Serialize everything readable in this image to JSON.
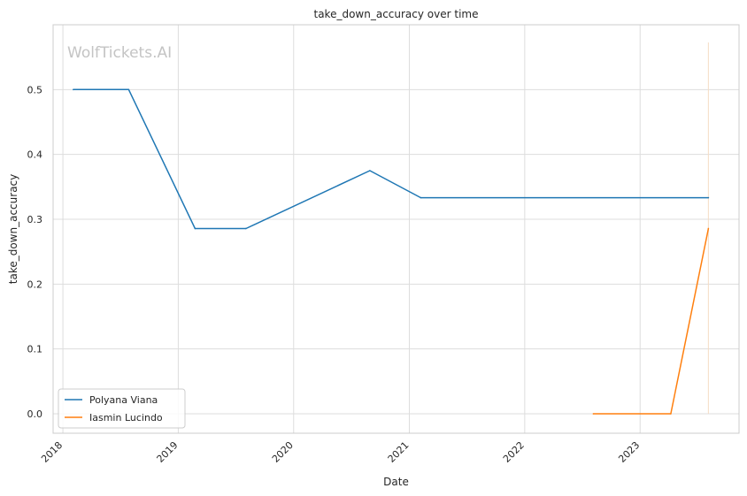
{
  "chart_data": {
    "type": "line",
    "title": "take_down_accuracy over time",
    "xlabel": "Date",
    "ylabel": "take_down_accuracy",
    "watermark": "WolfTickets.AI",
    "x_ticks": [
      "2018",
      "2019",
      "2020",
      "2021",
      "2022",
      "2023"
    ],
    "y_ticks": [
      "0.0",
      "0.1",
      "0.2",
      "0.3",
      "0.4",
      "0.5"
    ],
    "xlim": [
      "2017-12-01",
      "2023-11-10"
    ],
    "ylim": [
      -0.03,
      0.6
    ],
    "grid": true,
    "legend_position": "lower-left",
    "vertical_marker": {
      "x": "2023-08-05",
      "color": "#f5dcc4"
    },
    "series": [
      {
        "name": "Polyana Viana",
        "color": "#1f77b4",
        "points": [
          {
            "x": "2018-02-03",
            "y": 0.5
          },
          {
            "x": "2018-07-28",
            "y": 0.5
          },
          {
            "x": "2019-02-23",
            "y": 0.2857
          },
          {
            "x": "2019-08-03",
            "y": 0.2857
          },
          {
            "x": "2020-08-29",
            "y": 0.375
          },
          {
            "x": "2021-02-06",
            "y": 0.3333
          },
          {
            "x": "2023-08-05",
            "y": 0.3333
          }
        ]
      },
      {
        "name": "Iasmin Lucindo",
        "color": "#ff7f0e",
        "points": [
          {
            "x": "2022-08-06",
            "y": 0.0
          },
          {
            "x": "2023-04-08",
            "y": 0.0
          },
          {
            "x": "2023-08-05",
            "y": 0.2857
          }
        ]
      }
    ]
  }
}
